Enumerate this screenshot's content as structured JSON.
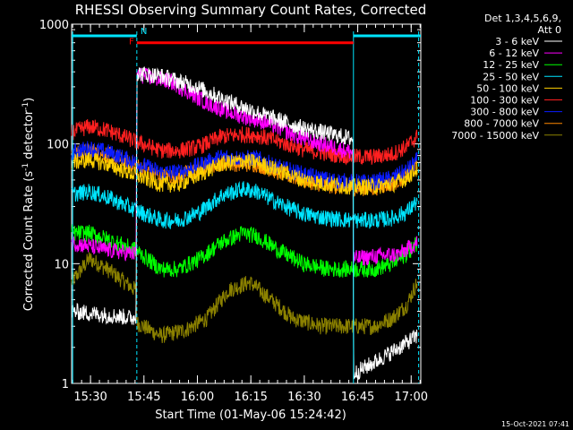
{
  "chart_data": {
    "type": "line",
    "title": "RHESSI Observing Summary Count Rates, Corrected",
    "xlabel": "Start Time (01-May-06 15:24:42)",
    "ylabel": "Corrected Count Rate (s",
    "ylabel_sup1": "-1",
    "ylabel_mid": " detector",
    "ylabel_sup2": "-1",
    "ylabel_end": ")",
    "yscale": "log",
    "ylim": [
      1,
      1000
    ],
    "xlim_minutes": [
      0,
      98
    ],
    "x_ticks": [
      {
        "m": 5.3,
        "label": "15:30"
      },
      {
        "m": 20.3,
        "label": "15:45"
      },
      {
        "m": 35.3,
        "label": "16:00"
      },
      {
        "m": 50.3,
        "label": "16:15"
      },
      {
        "m": 65.3,
        "label": "16:30"
      },
      {
        "m": 80.3,
        "label": "16:45"
      },
      {
        "m": 95.3,
        "label": "17:00"
      }
    ],
    "y_ticks": [
      {
        "v": 1,
        "label": "1"
      },
      {
        "v": 10,
        "label": "10"
      },
      {
        "v": 100,
        "label": "100"
      },
      {
        "v": 1000,
        "label": "1000"
      }
    ],
    "legend_header": [
      "Det 1,3,4,5,6,9,",
      "Att 0"
    ],
    "flags": [
      {
        "label": "F",
        "color": "#ff0000",
        "start": 18.3,
        "end": 79.1,
        "value": 700
      },
      {
        "label": "N",
        "color": "#00e5ff",
        "start": 0,
        "end": 18.3,
        "value": 800
      },
      {
        "label": "",
        "color": "#00e5ff",
        "start": 79.1,
        "end": 98,
        "value": 800
      }
    ],
    "markers": {
      "solid": [
        0.3,
        79.1
      ],
      "dashed": [
        18.3,
        97.4
      ],
      "color": "#00e5ff"
    },
    "series": [
      {
        "name": "3 - 6 keV",
        "color": "#ffffff",
        "points": [
          [
            0,
            4
          ],
          [
            18.1,
            3.5
          ],
          [
            18.3,
            390
          ],
          [
            25,
            370
          ],
          [
            35,
            300
          ],
          [
            45,
            220
          ],
          [
            55,
            170
          ],
          [
            65,
            135
          ],
          [
            79,
            110
          ],
          [
            79.1,
            1.2
          ],
          [
            85,
            1.5
          ],
          [
            92,
            2
          ],
          [
            97,
            2.5
          ]
        ]
      },
      {
        "name": "6 - 12 keV",
        "color": "#ff00ff",
        "points": [
          [
            0,
            15
          ],
          [
            10,
            13
          ],
          [
            18.1,
            12
          ],
          [
            18.3,
            380
          ],
          [
            28,
            330
          ],
          [
            38,
            220
          ],
          [
            45,
            180
          ],
          [
            55,
            150
          ],
          [
            65,
            110
          ],
          [
            79,
            85
          ],
          [
            79.1,
            11
          ],
          [
            85,
            11.5
          ],
          [
            92,
            12
          ],
          [
            97,
            15
          ]
        ]
      },
      {
        "name": "12 - 25 keV",
        "color": "#00ff00",
        "points": [
          [
            0,
            18
          ],
          [
            5,
            18
          ],
          [
            10,
            16
          ],
          [
            18,
            13
          ],
          [
            25,
            9
          ],
          [
            30,
            9
          ],
          [
            36,
            11
          ],
          [
            42,
            15
          ],
          [
            48,
            18
          ],
          [
            52,
            17
          ],
          [
            58,
            13
          ],
          [
            65,
            10
          ],
          [
            72,
            9
          ],
          [
            79,
            9
          ],
          [
            85,
            9
          ],
          [
            90,
            10
          ],
          [
            94,
            12
          ],
          [
            97,
            15
          ]
        ]
      },
      {
        "name": "25 - 50 keV",
        "color": "#00e5ff",
        "points": [
          [
            0,
            38
          ],
          [
            5,
            40
          ],
          [
            10,
            36
          ],
          [
            18,
            28
          ],
          [
            25,
            23
          ],
          [
            30,
            23
          ],
          [
            36,
            27
          ],
          [
            42,
            37
          ],
          [
            48,
            42
          ],
          [
            52,
            40
          ],
          [
            58,
            32
          ],
          [
            65,
            26
          ],
          [
            72,
            24
          ],
          [
            79,
            23
          ],
          [
            85,
            23
          ],
          [
            90,
            24
          ],
          [
            94,
            27
          ],
          [
            97,
            33
          ]
        ]
      },
      {
        "name": "50 - 100 keV",
        "color": "#ffd000",
        "points": [
          [
            0,
            70
          ],
          [
            5,
            74
          ],
          [
            10,
            68
          ],
          [
            18,
            55
          ],
          [
            25,
            46
          ],
          [
            30,
            46
          ],
          [
            36,
            56
          ],
          [
            42,
            68
          ],
          [
            48,
            72
          ],
          [
            52,
            70
          ],
          [
            58,
            60
          ],
          [
            65,
            50
          ],
          [
            72,
            46
          ],
          [
            79,
            44
          ],
          [
            85,
            44
          ],
          [
            90,
            46
          ],
          [
            94,
            52
          ],
          [
            97,
            62
          ]
        ]
      },
      {
        "name": "100 - 300 keV",
        "color": "#ff2020",
        "points": [
          [
            0,
            125
          ],
          [
            5,
            140
          ],
          [
            10,
            130
          ],
          [
            18,
            105
          ],
          [
            25,
            88
          ],
          [
            30,
            88
          ],
          [
            36,
            95
          ],
          [
            42,
            115
          ],
          [
            48,
            120
          ],
          [
            52,
            118
          ],
          [
            58,
            105
          ],
          [
            65,
            90
          ],
          [
            72,
            83
          ],
          [
            79,
            78
          ],
          [
            85,
            78
          ],
          [
            90,
            82
          ],
          [
            94,
            95
          ],
          [
            97,
            115
          ]
        ]
      },
      {
        "name": "300 - 800 keV",
        "color": "#0a1cff",
        "points": [
          [
            0,
            85
          ],
          [
            5,
            92
          ],
          [
            10,
            86
          ],
          [
            18,
            70
          ],
          [
            25,
            58
          ],
          [
            30,
            58
          ],
          [
            36,
            67
          ],
          [
            42,
            78
          ],
          [
            48,
            76
          ],
          [
            52,
            76
          ],
          [
            58,
            64
          ],
          [
            65,
            56
          ],
          [
            72,
            50
          ],
          [
            79,
            48
          ],
          [
            85,
            48
          ],
          [
            90,
            52
          ],
          [
            94,
            60
          ],
          [
            97,
            73
          ]
        ]
      },
      {
        "name": "800 - 7000 keV",
        "color": "#ff8800",
        "points": [
          [
            0,
            80
          ],
          [
            5,
            88
          ],
          [
            10,
            82
          ],
          [
            18,
            66
          ],
          [
            25,
            54
          ],
          [
            30,
            54
          ],
          [
            36,
            62
          ],
          [
            42,
            70
          ],
          [
            48,
            68
          ],
          [
            52,
            68
          ],
          [
            58,
            58
          ],
          [
            65,
            50
          ],
          [
            72,
            45
          ],
          [
            79,
            43
          ],
          [
            85,
            43
          ],
          [
            90,
            47
          ],
          [
            94,
            54
          ],
          [
            97,
            65
          ]
        ]
      },
      {
        "name": "7000 - 15000 keV",
        "color": "#8c8200",
        "points": [
          [
            0,
            7
          ],
          [
            5,
            11
          ],
          [
            10,
            9
          ],
          [
            18,
            6
          ],
          [
            18.3,
            3.2
          ],
          [
            25,
            2.5
          ],
          [
            32,
            2.8
          ],
          [
            38,
            3.5
          ],
          [
            44,
            6
          ],
          [
            50,
            7
          ],
          [
            56,
            5
          ],
          [
            62,
            3.5
          ],
          [
            70,
            3
          ],
          [
            79,
            3
          ],
          [
            85,
            3
          ],
          [
            90,
            3.5
          ],
          [
            94,
            4.5
          ],
          [
            97,
            7
          ]
        ]
      }
    ]
  },
  "footer_date": "15-Oct-2021 07:41"
}
